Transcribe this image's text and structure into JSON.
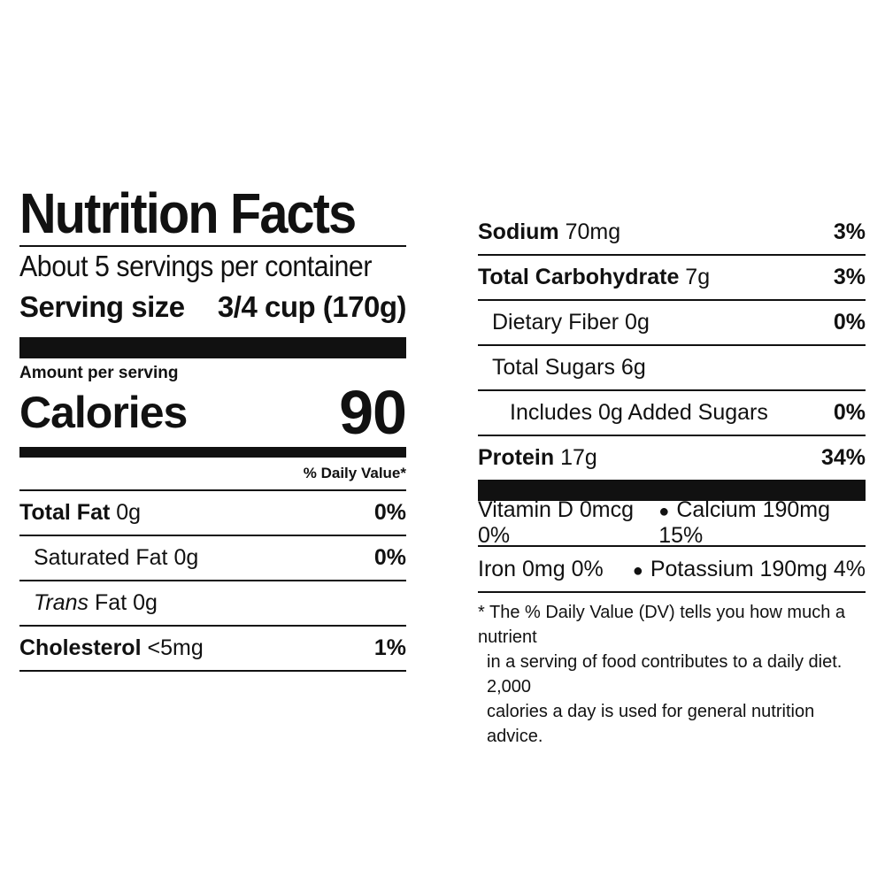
{
  "title": "Nutrition Facts",
  "servings_per_container": "About 5 servings per container",
  "serving_size": {
    "label": "Serving size",
    "value": "3/4 cup (170g)"
  },
  "amount_per_serving": "Amount per serving",
  "calories": {
    "label": "Calories",
    "value": "90"
  },
  "daily_value_header": "% Daily Value*",
  "nutrients_left": [
    {
      "name": "Total Fat",
      "amount": "0g",
      "dv": "0%"
    },
    {
      "name": "Saturated Fat",
      "amount": "0g",
      "dv": "0%"
    },
    {
      "name": "Trans",
      "suffix": "Fat 0g",
      "dv": ""
    },
    {
      "name": "Cholesterol",
      "amount": "<5mg",
      "dv": "1%"
    }
  ],
  "nutrients_right": [
    {
      "name": "Sodium",
      "amount": "70mg",
      "dv": "3%"
    },
    {
      "name": "Total Carbohydrate",
      "amount": "7g",
      "dv": "3%"
    },
    {
      "name": "Dietary Fiber",
      "amount": "0g",
      "dv": "0%"
    },
    {
      "name": "Total Sugars",
      "amount": "6g",
      "dv": ""
    },
    {
      "name": "Includes 0g Added Sugars",
      "amount": "",
      "dv": "0%"
    },
    {
      "name": "Protein",
      "amount": "17g",
      "dv": "34%"
    }
  ],
  "vitamins": [
    {
      "left": "Vitamin D 0mcg 0%",
      "right": "Calcium 190mg 15%"
    },
    {
      "left": "Iron 0mg 0%",
      "right": "Potassium 190mg 4%"
    }
  ],
  "footnote": [
    "* The % Daily Value (DV) tells you how much a nutrient",
    "in a serving of food contributes to a daily diet. 2,000",
    "calories a day is used for general nutrition advice."
  ],
  "colors": {
    "ink": "#111111",
    "background": "#ffffff"
  }
}
